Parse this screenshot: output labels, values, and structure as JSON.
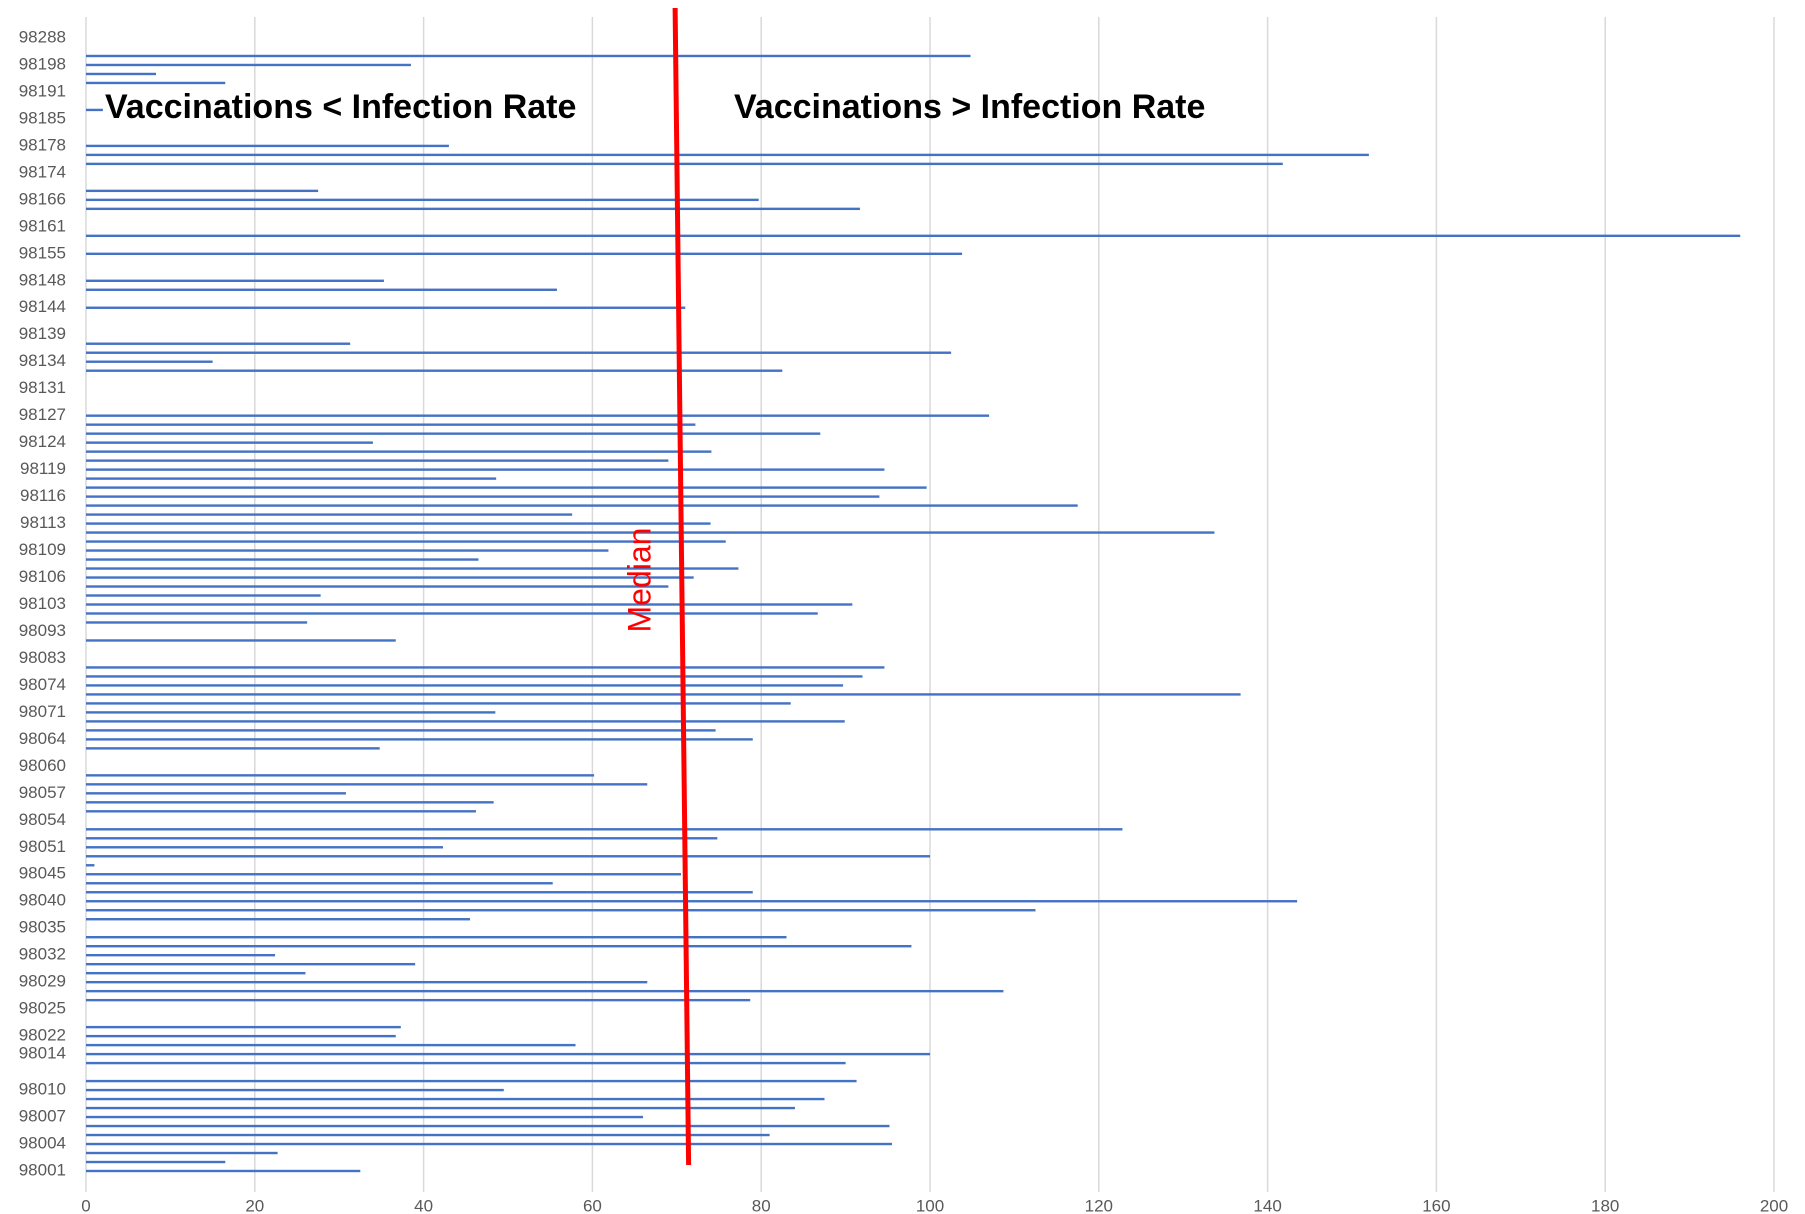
{
  "chart_data": {
    "type": "barh",
    "categories": [
      "98001",
      null,
      null,
      "98004",
      null,
      null,
      "98007",
      null,
      null,
      "98010",
      null,
      null,
      null,
      "98014",
      null,
      "98022",
      null,
      null,
      "98025",
      null,
      null,
      "98029",
      null,
      null,
      "98032",
      null,
      null,
      "98035",
      null,
      null,
      "98040",
      null,
      null,
      "98045",
      null,
      null,
      "98051",
      null,
      null,
      "98054",
      null,
      null,
      "98057",
      null,
      null,
      "98060",
      null,
      null,
      "98064",
      null,
      null,
      "98071",
      null,
      null,
      "98074",
      null,
      null,
      "98083",
      null,
      null,
      "98093",
      null,
      null,
      "98103",
      null,
      null,
      "98106",
      null,
      null,
      "98109",
      null,
      null,
      "98113",
      null,
      null,
      "98116",
      null,
      null,
      "98119",
      null,
      null,
      "98124",
      null,
      null,
      "98127",
      null,
      null,
      "98131",
      null,
      null,
      "98134",
      null,
      null,
      "98139",
      null,
      null,
      "98144",
      null,
      null,
      "98148",
      null,
      null,
      "98155",
      null,
      null,
      "98161",
      null,
      null,
      "98166",
      null,
      null,
      "98174",
      null,
      null,
      "98178",
      null,
      null,
      "98185",
      null,
      null,
      "98191",
      null,
      null,
      "98198",
      null,
      null,
      "98288"
    ],
    "values": [
      32.5,
      16.5,
      22.7,
      95.5,
      81,
      95.2,
      66,
      84,
      87.5,
      49.5,
      91.3,
      0,
      90,
      100,
      58,
      36.7,
      37.3,
      0,
      0,
      78.7,
      108.7,
      66.5,
      26,
      39,
      22.4,
      97.8,
      83,
      0,
      45.5,
      112.5,
      143.5,
      79,
      55.3,
      70.5,
      1,
      100,
      42.3,
      74.8,
      122.8,
      0,
      46.2,
      48.3,
      30.8,
      66.5,
      60.2,
      0,
      0,
      34.8,
      79,
      74.6,
      89.9,
      48.5,
      83.5,
      136.8,
      89.7,
      92,
      94.6,
      0,
      0,
      36.7,
      0,
      26.2,
      86.7,
      90.8,
      27.8,
      69,
      72,
      77.3,
      46.5,
      61.9,
      75.8,
      133.7,
      74,
      57.6,
      117.5,
      94,
      99.6,
      48.6,
      94.6,
      69,
      74.1,
      34,
      87,
      72.2,
      107,
      0,
      0,
      0,
      0,
      82.5,
      15,
      102.5,
      31.3,
      0,
      0,
      0,
      71,
      0,
      55.8,
      35.3,
      0,
      0,
      103.8,
      0,
      196,
      0,
      0,
      91.7,
      79.7,
      27.5,
      0,
      0,
      141.8,
      152,
      43,
      0,
      0,
      0,
      2,
      0,
      0,
      16.5,
      8.3,
      38.5,
      104.8,
      0,
      0
    ],
    "color": "#4472c4",
    "xlim": [
      0,
      200
    ],
    "xticks": [
      0,
      20,
      40,
      60,
      80,
      100,
      120,
      140,
      160,
      180,
      200
    ],
    "grid": true,
    "annotations": [
      "Vaccinations < Infection Rate",
      "Vaccinations > Infection Rate"
    ],
    "median_line": {
      "label": "Median",
      "x_start": 69.8,
      "x_end": 71.4,
      "color": "#ff0000"
    }
  }
}
